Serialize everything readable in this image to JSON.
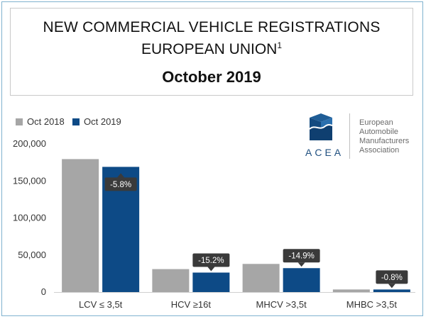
{
  "title": {
    "line1": "NEW COMMERCIAL VEHICLE REGISTRATIONS",
    "line2": "EUROPEAN UNION",
    "line2_sup": "1",
    "date": "October 2019"
  },
  "logo": {
    "wordmark": "ACEA",
    "name_lines": [
      "European",
      "Automobile",
      "Manufacturers",
      "Association"
    ]
  },
  "colors": {
    "oct2018": "#a6a6a6",
    "oct2019": "#0d4a86",
    "label_box": "#3a3a3a",
    "logo_blue": "#1f4f7f"
  },
  "chart_data": {
    "type": "bar",
    "title": "NEW COMMERCIAL VEHICLE REGISTRATIONS EUROPEAN UNION1 October 2019",
    "categories": [
      "LCV ≤ 3,5t",
      "HCV ≥16t",
      "MHCV >3,5t",
      "MHBC >3,5t"
    ],
    "series": [
      {
        "name": "Oct 2018",
        "values": [
          179500,
          31000,
          38000,
          3500
        ]
      },
      {
        "name": "Oct 2019",
        "values": [
          169000,
          26300,
          32300,
          3470
        ]
      }
    ],
    "change_labels": [
      "-5.8%",
      "-15.2%",
      "-14.9%",
      "-0.8%"
    ],
    "y_ticks": [
      "0",
      "50,000",
      "100,000",
      "150,000",
      "200,000"
    ],
    "y_tick_values": [
      0,
      50000,
      100000,
      150000,
      200000
    ],
    "ylim": [
      0,
      200000
    ],
    "xlabel": "",
    "ylabel": "",
    "legend_position": "top-left",
    "grid": false
  }
}
